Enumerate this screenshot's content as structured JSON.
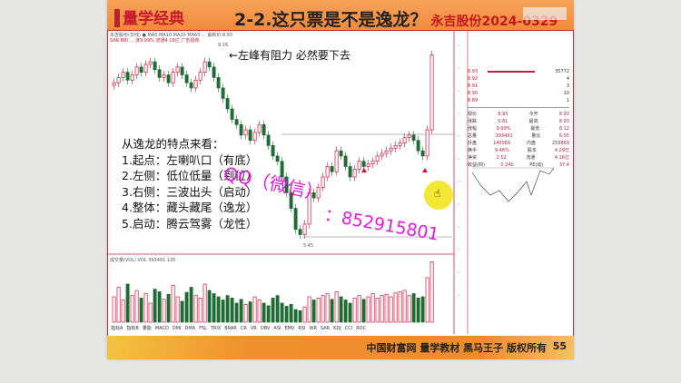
{
  "header": {
    "logo": "量学经典",
    "title": "2-2.这只票是不是逸龙？",
    "subtitle": "永吉股份2024-0329"
  },
  "chart_info": {
    "line1": "永吉股份(日线) ● MA5 MA10 MA20 MA60 ... 最新价 8.93",
    "line2": "SAR  BBI  ... 涨9.99%  流通4.16亿  广告招商"
  },
  "annotation": "←左峰有阻力 必然要下去",
  "features": {
    "heading": "从逸龙的特点来看：",
    "items": [
      "1.起点：左喇叭口（有底）",
      "2.左侧：低位低量（到位）",
      "3.右侧：三波出头（启动）",
      "4.整体：藏头藏尾（逸龙）",
      "5.启动：腾云驾雾（龙性）"
    ]
  },
  "watermark": {
    "part1": "QQ（微信）",
    "part2": "：852915801"
  },
  "labels": {
    "high": "9.16",
    "low": "5.45",
    "vol_info": "成交量(VOL)  VOL 393491  135"
  },
  "quote": {
    "book": [
      {
        "p": "8.93",
        "v": "35772"
      },
      {
        "p": "8.92",
        "v": "4"
      },
      {
        "p": "8.91",
        "v": "3"
      },
      {
        "p": "8.90",
        "v": "10"
      },
      {
        "p": "8.89",
        "v": "1"
      }
    ],
    "stats": [
      [
        "现价",
        "8.93",
        "今开",
        "8.93"
      ],
      [
        "涨跌",
        "0.81",
        "最高",
        "8.93"
      ],
      [
        "涨幅",
        "9.99%",
        "最低",
        "8.12"
      ],
      [
        "总量",
        "393491",
        "量比",
        "6.55"
      ],
      [
        "外盘",
        "140069",
        "内盘",
        "253869"
      ],
      [
        "换手",
        "9.46%",
        "股本",
        "4.29亿"
      ],
      [
        "净资",
        "2.52",
        "流通",
        "4.16亿"
      ],
      [
        "收益(四)",
        "0.240",
        "PE(动)",
        "37.4"
      ]
    ]
  },
  "toolbar": [
    "指标A",
    "指标B",
    "量能",
    "MACD",
    "DMI",
    "DMA",
    "FSL",
    "TRIX",
    "BRAR",
    "CR",
    "VR",
    "OBV",
    "ASI",
    "EMV",
    "RSI",
    "WR",
    "SAR",
    "KDJ",
    "CCI",
    "ROC"
  ],
  "footer": {
    "text": "中国财富网 量学教材 黑马王子 版权所有",
    "page": "55"
  },
  "colors": {
    "up": "#d2143a",
    "down": "#1f6b35",
    "accent": "#f08a3a",
    "watermark": "#e21be0"
  },
  "price_closes": [
    8.4,
    8.5,
    8.6,
    8.45,
    8.55,
    8.7,
    8.6,
    8.75,
    8.8,
    8.65,
    8.5,
    8.55,
    8.4,
    8.6,
    8.7,
    8.55,
    8.4,
    8.3,
    8.45,
    8.6,
    8.8,
    8.7,
    8.5,
    8.3,
    8.1,
    7.9,
    7.7,
    7.6,
    7.4,
    7.5,
    7.3,
    7.45,
    7.6,
    7.4,
    7.2,
    7.0,
    6.9,
    6.6,
    6.3,
    6.0,
    5.6,
    5.5,
    5.7,
    6.3,
    6.2,
    6.4,
    6.6,
    6.8,
    6.7,
    7.1,
    7.0,
    6.8,
    6.6,
    6.75,
    6.9,
    6.8,
    6.85,
    6.9,
    7.0,
    7.05,
    7.1,
    7.15,
    7.2,
    7.25,
    7.35,
    7.4,
    7.3,
    7.1,
    7.0,
    7.5,
    8.93
  ],
  "volumes": [
    40,
    55,
    35,
    60,
    42,
    50,
    38,
    45,
    30,
    52,
    48,
    36,
    44,
    58,
    40,
    33,
    47,
    55,
    42,
    38,
    60,
    50,
    45,
    40,
    35,
    42,
    38,
    30,
    36,
    28,
    32,
    40,
    35,
    30,
    26,
    38,
    42,
    30,
    25,
    28,
    20,
    18,
    24,
    40,
    35,
    38,
    42,
    45,
    36,
    48,
    40,
    35,
    30,
    38,
    42,
    36,
    40,
    45,
    38,
    42,
    44,
    40,
    46,
    48,
    50,
    42,
    45,
    38,
    40,
    70,
    95
  ]
}
